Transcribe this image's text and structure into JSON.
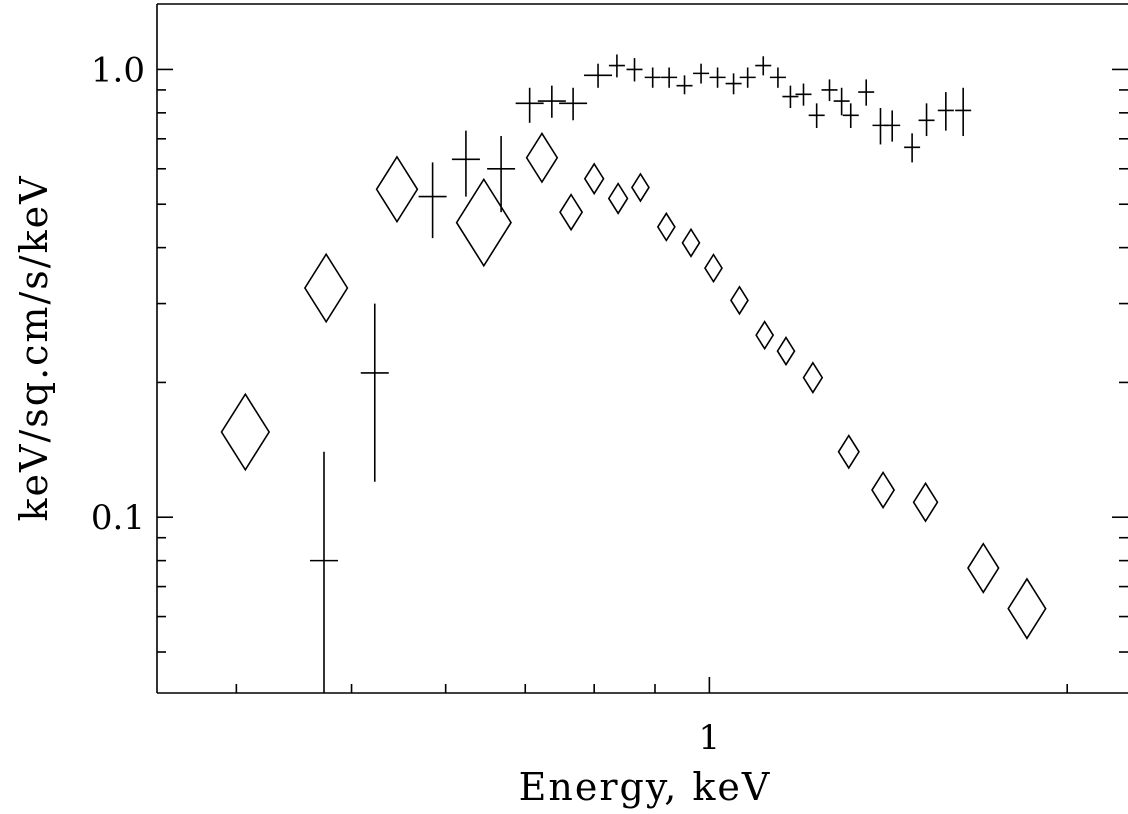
{
  "chart_data": {
    "type": "scatter",
    "xlabel": "Energy, keV",
    "ylabel": "keV/sq.cm/s/keV",
    "xscale": "log",
    "yscale": "log",
    "xlim": [
      0.343,
      2.25
    ],
    "ylim": [
      0.0405,
      1.4
    ],
    "x_tick_labels": [
      {
        "value": 1,
        "label": "1"
      }
    ],
    "y_tick_labels": [
      {
        "value": 0.1,
        "label": "0.1"
      },
      {
        "value": 1.0,
        "label": "1.0"
      }
    ],
    "grid": false,
    "series": [
      {
        "marker": "cross-errorbar",
        "points": [
          {
            "x": 0.474,
            "y": 0.08,
            "ylo": 0.039,
            "yhi": 0.14
          },
          {
            "x": 0.523,
            "y": 0.21,
            "ylo": 0.12,
            "yhi": 0.3
          },
          {
            "x": 0.585,
            "y": 0.52,
            "ylo": 0.42,
            "yhi": 0.62
          },
          {
            "x": 0.624,
            "y": 0.63,
            "ylo": 0.52,
            "yhi": 0.73
          },
          {
            "x": 0.668,
            "y": 0.6,
            "ylo": 0.48,
            "yhi": 0.71
          },
          {
            "x": 0.706,
            "y": 0.84,
            "ylo": 0.76,
            "yhi": 0.91
          },
          {
            "x": 0.737,
            "y": 0.85,
            "ylo": 0.78,
            "yhi": 0.92
          },
          {
            "x": 0.768,
            "y": 0.84,
            "ylo": 0.77,
            "yhi": 0.91
          },
          {
            "x": 0.806,
            "y": 0.97,
            "ylo": 0.91,
            "yhi": 1.03
          },
          {
            "x": 0.836,
            "y": 1.02,
            "ylo": 0.96,
            "yhi": 1.08
          },
          {
            "x": 0.865,
            "y": 1.0,
            "ylo": 0.94,
            "yhi": 1.06
          },
          {
            "x": 0.896,
            "y": 0.96,
            "ylo": 0.91,
            "yhi": 1.01
          },
          {
            "x": 0.925,
            "y": 0.96,
            "ylo": 0.91,
            "yhi": 1.01
          },
          {
            "x": 0.953,
            "y": 0.92,
            "ylo": 0.88,
            "yhi": 0.97
          },
          {
            "x": 0.984,
            "y": 0.98,
            "ylo": 0.93,
            "yhi": 1.03
          },
          {
            "x": 1.016,
            "y": 0.96,
            "ylo": 0.91,
            "yhi": 1.01
          },
          {
            "x": 1.048,
            "y": 0.93,
            "ylo": 0.88,
            "yhi": 0.98
          },
          {
            "x": 1.077,
            "y": 0.96,
            "ylo": 0.91,
            "yhi": 1.01
          },
          {
            "x": 1.11,
            "y": 1.02,
            "ylo": 0.97,
            "yhi": 1.07
          },
          {
            "x": 1.142,
            "y": 0.96,
            "ylo": 0.91,
            "yhi": 1.01
          },
          {
            "x": 1.17,
            "y": 0.87,
            "ylo": 0.82,
            "yhi": 0.92
          },
          {
            "x": 1.2,
            "y": 0.88,
            "ylo": 0.83,
            "yhi": 0.93
          },
          {
            "x": 1.231,
            "y": 0.79,
            "ylo": 0.74,
            "yhi": 0.84
          },
          {
            "x": 1.262,
            "y": 0.9,
            "ylo": 0.85,
            "yhi": 0.95
          },
          {
            "x": 1.292,
            "y": 0.85,
            "ylo": 0.79,
            "yhi": 0.91
          },
          {
            "x": 1.315,
            "y": 0.79,
            "ylo": 0.74,
            "yhi": 0.84
          },
          {
            "x": 1.355,
            "y": 0.89,
            "ylo": 0.83,
            "yhi": 0.95
          },
          {
            "x": 1.393,
            "y": 0.75,
            "ylo": 0.68,
            "yhi": 0.82
          },
          {
            "x": 1.425,
            "y": 0.75,
            "ylo": 0.69,
            "yhi": 0.81
          },
          {
            "x": 1.481,
            "y": 0.67,
            "ylo": 0.62,
            "yhi": 0.72
          },
          {
            "x": 1.523,
            "y": 0.77,
            "ylo": 0.71,
            "yhi": 0.84
          },
          {
            "x": 1.581,
            "y": 0.81,
            "ylo": 0.73,
            "yhi": 0.89
          },
          {
            "x": 1.635,
            "y": 0.81,
            "ylo": 0.71,
            "yhi": 0.91
          }
        ]
      },
      {
        "marker": "diamond",
        "points": [
          {
            "x": 0.407,
            "y": 0.155,
            "size": 1.4
          },
          {
            "x": 0.476,
            "y": 0.325,
            "size": 1.25
          },
          {
            "x": 0.546,
            "y": 0.54,
            "size": 1.2
          },
          {
            "x": 0.646,
            "y": 0.455,
            "size": 1.6
          },
          {
            "x": 0.723,
            "y": 0.635,
            "size": 0.9
          },
          {
            "x": 0.765,
            "y": 0.48,
            "size": 0.65
          },
          {
            "x": 0.8,
            "y": 0.57,
            "size": 0.55
          },
          {
            "x": 0.838,
            "y": 0.515,
            "size": 0.55
          },
          {
            "x": 0.875,
            "y": 0.545,
            "size": 0.5
          },
          {
            "x": 0.92,
            "y": 0.445,
            "size": 0.5
          },
          {
            "x": 0.965,
            "y": 0.41,
            "size": 0.5
          },
          {
            "x": 1.008,
            "y": 0.36,
            "size": 0.5
          },
          {
            "x": 1.06,
            "y": 0.305,
            "size": 0.5
          },
          {
            "x": 1.113,
            "y": 0.255,
            "size": 0.5
          },
          {
            "x": 1.16,
            "y": 0.235,
            "size": 0.5
          },
          {
            "x": 1.222,
            "y": 0.205,
            "size": 0.55
          },
          {
            "x": 1.31,
            "y": 0.14,
            "size": 0.6
          },
          {
            "x": 1.4,
            "y": 0.115,
            "size": 0.65
          },
          {
            "x": 1.52,
            "y": 0.108,
            "size": 0.7
          },
          {
            "x": 1.7,
            "y": 0.077,
            "size": 0.9
          },
          {
            "x": 1.85,
            "y": 0.0625,
            "size": 1.1
          }
        ]
      }
    ]
  }
}
